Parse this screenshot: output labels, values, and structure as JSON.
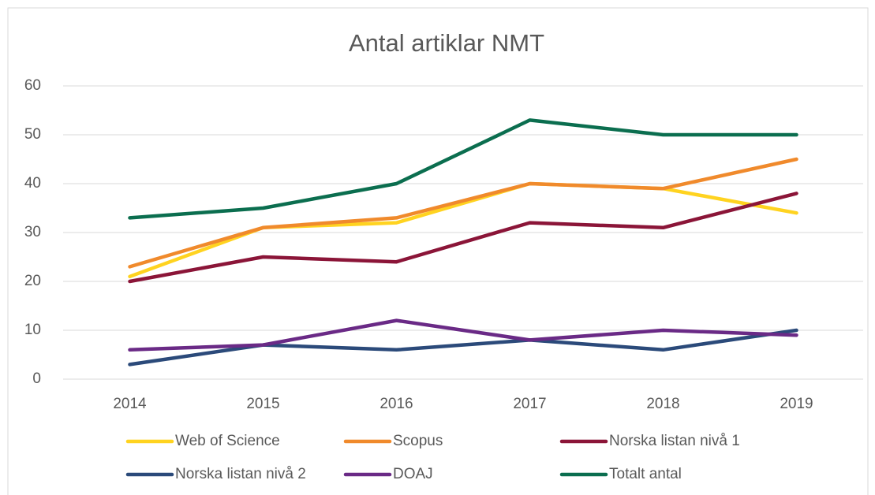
{
  "chart_data": {
    "type": "line",
    "title": "Antal artiklar NMT",
    "categories": [
      "2014",
      "2015",
      "2016",
      "2017",
      "2018",
      "2019"
    ],
    "series": [
      {
        "name": "Web of Science",
        "color": "#ffd320",
        "values": [
          21,
          31,
          32,
          40,
          39,
          34
        ]
      },
      {
        "name": "Scopus",
        "color": "#f08a2c",
        "values": [
          23,
          31,
          33,
          40,
          39,
          45
        ]
      },
      {
        "name": "Norska listan nivå 1",
        "color": "#8b1538",
        "values": [
          20,
          25,
          24,
          32,
          31,
          38
        ]
      },
      {
        "name": "Norska listan nivå 2",
        "color": "#2b4a7a",
        "values": [
          3,
          7,
          6,
          8,
          6,
          10
        ]
      },
      {
        "name": "DOAJ",
        "color": "#6a2a86",
        "values": [
          6,
          7,
          12,
          8,
          10,
          9
        ]
      },
      {
        "name": "Totalt antal",
        "color": "#0b6e4f",
        "values": [
          33,
          35,
          40,
          53,
          50,
          50
        ]
      }
    ],
    "ylim": [
      0,
      60
    ],
    "yticks": [
      0,
      10,
      20,
      30,
      40,
      50,
      60
    ],
    "grid": true,
    "legend": "bottom"
  }
}
